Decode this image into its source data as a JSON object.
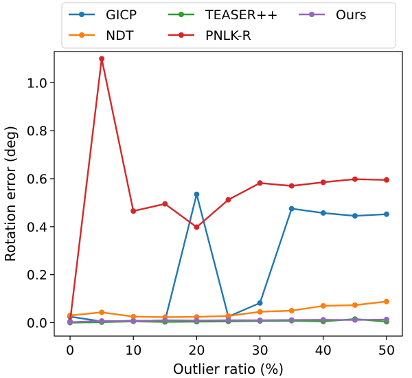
{
  "chart_data": {
    "type": "line",
    "title": "",
    "xlabel": "Outlier ratio (%)",
    "ylabel": "Rotation error (deg)",
    "xlim": [
      -2.5,
      52.5
    ],
    "ylim": [
      -0.056,
      1.13
    ],
    "xticks": [
      0,
      10,
      20,
      30,
      40,
      50
    ],
    "xtick_labels": [
      "0",
      "10",
      "20",
      "30",
      "40",
      "50"
    ],
    "yticks": [
      0.0,
      0.2,
      0.4,
      0.6,
      0.8,
      1.0
    ],
    "ytick_labels": [
      "0.0",
      "0.2",
      "0.4",
      "0.6",
      "0.8",
      "1.0"
    ],
    "grid": false,
    "legend_position": "top, above plot",
    "x": [
      0,
      5,
      10,
      15,
      20,
      25,
      30,
      35,
      40,
      45,
      50
    ],
    "series": [
      {
        "name": "GICP",
        "color": "#1f77b4",
        "values": [
          0.025,
          0.005,
          0.008,
          0.008,
          0.535,
          0.025,
          0.082,
          0.475,
          0.457,
          0.445,
          0.452
        ]
      },
      {
        "name": "NDT",
        "color": "#ff7f0e",
        "values": [
          0.03,
          0.043,
          0.025,
          0.023,
          0.024,
          0.028,
          0.045,
          0.05,
          0.07,
          0.073,
          0.088
        ]
      },
      {
        "name": "TEASER++",
        "color": "#2ca02c",
        "values": [
          0.0,
          0.002,
          0.005,
          0.003,
          0.004,
          0.005,
          0.007,
          0.008,
          0.005,
          0.015,
          0.004
        ]
      },
      {
        "name": "PNLK-R",
        "color": "#d62728",
        "values": [
          0.005,
          1.1,
          0.465,
          0.495,
          0.398,
          0.512,
          0.582,
          0.57,
          0.585,
          0.598,
          0.595
        ]
      },
      {
        "name": "Ours",
        "color": "#9467bd",
        "values": [
          0.002,
          0.007,
          0.006,
          0.01,
          0.009,
          0.01,
          0.01,
          0.011,
          0.012,
          0.011,
          0.013
        ]
      }
    ]
  }
}
